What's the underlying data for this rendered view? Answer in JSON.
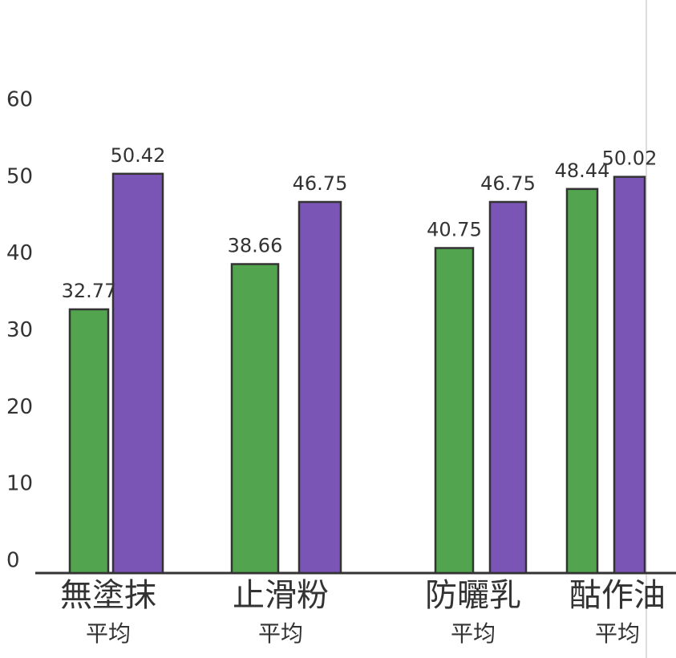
{
  "chart_data": {
    "type": "bar",
    "categories": [
      "無塗抹",
      "止滑粉",
      "防曬乳",
      "酤作油"
    ],
    "subcategories": [
      "平均",
      "平均",
      "平均",
      "平均"
    ],
    "series": [
      {
        "color": "#3f9a3c",
        "values": [
          32.77,
          38.66,
          40.75,
          48.44
        ]
      },
      {
        "color": "#6b43ad",
        "values": [
          50.42,
          46.75,
          46.75,
          50.02
        ]
      }
    ],
    "ylim": [
      0,
      60
    ],
    "yticks": [
      0,
      10,
      20,
      30,
      40,
      50,
      60
    ],
    "grid": false
  }
}
